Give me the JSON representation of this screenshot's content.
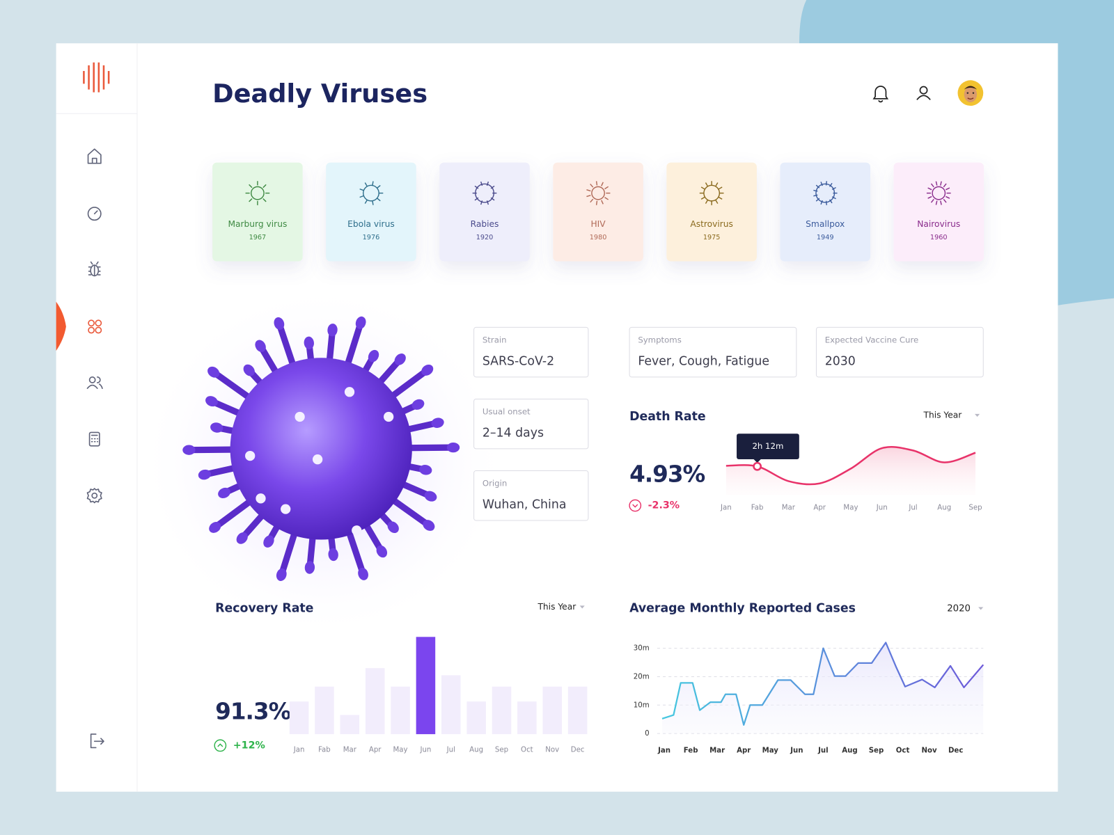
{
  "header": {
    "title": "Deadly Viruses"
  },
  "viruses": [
    {
      "name": "Marburg virus",
      "year": 1967,
      "color": "#e4f7e4",
      "text_color": "#3f8a43"
    },
    {
      "name": "Ebola virus",
      "year": 1976,
      "color": "#e3f5fb",
      "text_color": "#2f6f8c"
    },
    {
      "name": "Rabies",
      "year": 1920,
      "color": "#eeeefb",
      "text_color": "#4b4b8c"
    },
    {
      "name": "HIV",
      "year": 1980,
      "color": "#fdece5",
      "text_color": "#b06a58"
    },
    {
      "name": "Astrovirus",
      "year": 1975,
      "color": "#fdf0dc",
      "text_color": "#8a6a1e"
    },
    {
      "name": "Smallpox",
      "year": 1949,
      "color": "#e6edfb",
      "text_color": "#3b5b9c"
    },
    {
      "name": "Nairovirus",
      "year": 1960,
      "color": "#fcedfa",
      "text_color": "#8a2c8c"
    }
  ],
  "details": [
    {
      "label": "Strain",
      "value": "SARS-CoV-2"
    },
    {
      "label": "Usual onset",
      "value": "2–14 days"
    },
    {
      "label": "Origin",
      "value": "Wuhan, China"
    },
    {
      "label": "Symptoms",
      "value": "Fever, Cough, Fatigue"
    },
    {
      "label": "Expected Vaccine Cure",
      "value": "2030"
    }
  ],
  "chart_data": [
    {
      "type": "line",
      "title": "Death Rate",
      "period": "This Year",
      "headline": "4.93%",
      "change": "-2.3%",
      "tooltip": "2h 12m",
      "tooltip_at": "Fab",
      "categories": [
        "Jan",
        "Fab",
        "Mar",
        "Apr",
        "May",
        "Jun",
        "Jul",
        "Aug",
        "Sep"
      ],
      "values": [
        55,
        54,
        28,
        24,
        50,
        86,
        82,
        61,
        78
      ],
      "ylim": [
        0,
        100
      ],
      "color": "#e8336a"
    },
    {
      "type": "bar",
      "title": "Recovery Rate",
      "period": "This Year",
      "headline": "91.3%",
      "change": "+12%",
      "categories": [
        "Jan",
        "Fab",
        "Mar",
        "Apr",
        "May",
        "Jun",
        "Jul",
        "Aug",
        "Sep",
        "Oct",
        "Nov",
        "Dec"
      ],
      "values": [
        46,
        67,
        27,
        93,
        67,
        137,
        83,
        46,
        67,
        46,
        67,
        67
      ],
      "ylim": [
        0,
        140
      ],
      "color": "#f2edfc",
      "highlight": "Jun",
      "highlight_color": "#7b45ee"
    },
    {
      "type": "line",
      "title": "Average Monthly Reported Cases",
      "period": "2020",
      "x": [
        0.92,
        1.35,
        1.62,
        2.07,
        2.34,
        2.74,
        3.14,
        3.31,
        3.71,
        4.0,
        4.24,
        4.7,
        5.29,
        5.77,
        6.31,
        6.63,
        7.0,
        7.43,
        7.84,
        8.32,
        8.83,
        9.36,
        9.76,
        10.09,
        10.73,
        11.21,
        11.8,
        12.31,
        13.04
      ],
      "values": [
        5200000,
        6500000,
        17800000,
        17800000,
        8200000,
        11000000,
        11000000,
        13800000,
        13800000,
        3000000,
        10000000,
        10000000,
        18800000,
        18800000,
        13800000,
        13800000,
        30000000,
        20200000,
        20200000,
        24800000,
        24800000,
        32000000,
        23200000,
        16500000,
        19000000,
        16200000,
        23800000,
        16200000,
        24200000
      ],
      "xlim": [
        0.92,
        13.04
      ],
      "xticks": [
        {
          "value": 1,
          "label": "Jan"
        },
        {
          "value": 2,
          "label": "Feb"
        },
        {
          "value": 3,
          "label": "Mar"
        },
        {
          "value": 4,
          "label": "Apr"
        },
        {
          "value": 5,
          "label": "May"
        },
        {
          "value": 6,
          "label": "Jun"
        },
        {
          "value": 7,
          "label": "Jul"
        },
        {
          "value": 8,
          "label": "Aug"
        },
        {
          "value": 9,
          "label": "Sep"
        },
        {
          "value": 10,
          "label": "Oct"
        },
        {
          "value": 11,
          "label": "Nov"
        },
        {
          "value": 12,
          "label": "Dec"
        }
      ],
      "ylim": [
        0,
        32500000
      ],
      "yticks": [
        0,
        {
          "value": 10000000,
          "label": "10m"
        },
        {
          "value": 20000000,
          "label": "20m"
        },
        {
          "value": 30000000,
          "label": "30m"
        }
      ],
      "grid": true,
      "colors": [
        "#45c8df",
        "#6d59d9"
      ]
    }
  ]
}
